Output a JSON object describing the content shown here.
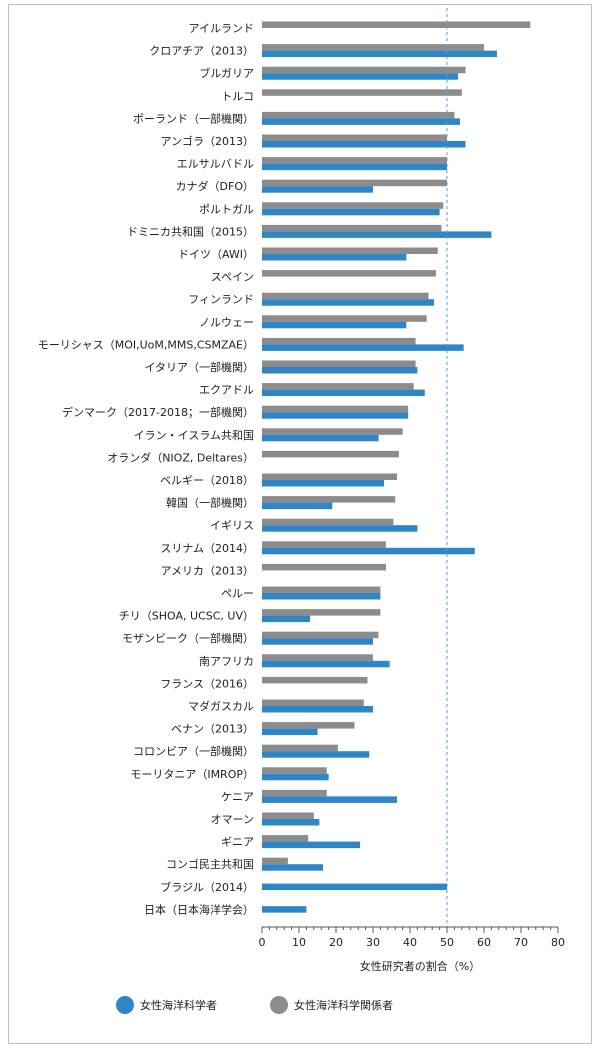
{
  "chart_data": {
    "type": "bar",
    "orientation": "horizontal",
    "xlabel": "女性研究者の割合（%）",
    "xlim": [
      0,
      80
    ],
    "xticks": [
      0,
      10,
      20,
      30,
      40,
      50,
      60,
      70,
      80
    ],
    "reference_line": 50,
    "grid": false,
    "legend_position": "bottom",
    "colors": {
      "scientists": "#2f86c6",
      "personnel": "#8c8c8c",
      "refline": "#4aa3df"
    },
    "series": [
      {
        "name": "女性海洋科学者",
        "color": "#2f86c6",
        "values": [
          null,
          63.5,
          53,
          null,
          53.5,
          55,
          50,
          30,
          48,
          62,
          39,
          null,
          46.5,
          39,
          54.5,
          42,
          44,
          39.5,
          31.5,
          null,
          33,
          19,
          42,
          57.5,
          null,
          32,
          13,
          30,
          34.5,
          null,
          30,
          15,
          29,
          18,
          36.5,
          15.5,
          26.5,
          16.5,
          50,
          12
        ]
      },
      {
        "name": "女性海洋科学関係者",
        "color": "#8c8c8c",
        "values": [
          72.5,
          60,
          55,
          54,
          52,
          50,
          50,
          50,
          49,
          48.5,
          47.5,
          47,
          45,
          44.5,
          41.5,
          41.5,
          41,
          39.5,
          38,
          37,
          36.5,
          36,
          35.5,
          33.5,
          33.5,
          32,
          32,
          31.5,
          30,
          28.5,
          27.5,
          25,
          20.5,
          17.5,
          17.5,
          14,
          12.5,
          7,
          null,
          null
        ]
      }
    ],
    "categories": [
      "アイルランド",
      "クロアチア（2013）",
      "ブルガリア",
      "トルコ",
      "ポーランド（一部機関）",
      "アンゴラ（2013）",
      "エルサルバドル",
      "カナダ（DFO）",
      "ポルトガル",
      "ドミニカ共和国（2015）",
      "ドイツ（AWI）",
      "スペイン",
      "フィンランド",
      "ノルウェー",
      "モーリシャス（MOI,UoM,MMS,CSMZAE）",
      "イタリア（一部機関）",
      "エクアドル",
      "デンマーク（2017-2018；一部機関）",
      "イラン・イスラム共和国",
      "オランダ（NIOZ, Deltares）",
      "ベルギー（2018）",
      "韓国（一部機関）",
      "イギリス",
      "スリナム（2014）",
      "アメリカ（2013）",
      "ペルー",
      "チリ（SHOA, UCSC, UV）",
      "モザンビーク（一部機関）",
      "南アフリカ",
      "フランス（2016）",
      "マダガスカル",
      "ベナン（2013）",
      "コロンビア（一部機関）",
      "モーリタニア（IMROP）",
      "ケニア",
      "オマーン",
      "ギニア",
      "コンゴ民主共和国",
      "ブラジル（2014）",
      "日本（日本海洋学会）"
    ]
  },
  "legend": {
    "scientists_label": "女性海洋科学者",
    "personnel_label": "女性海洋科学関係者"
  }
}
